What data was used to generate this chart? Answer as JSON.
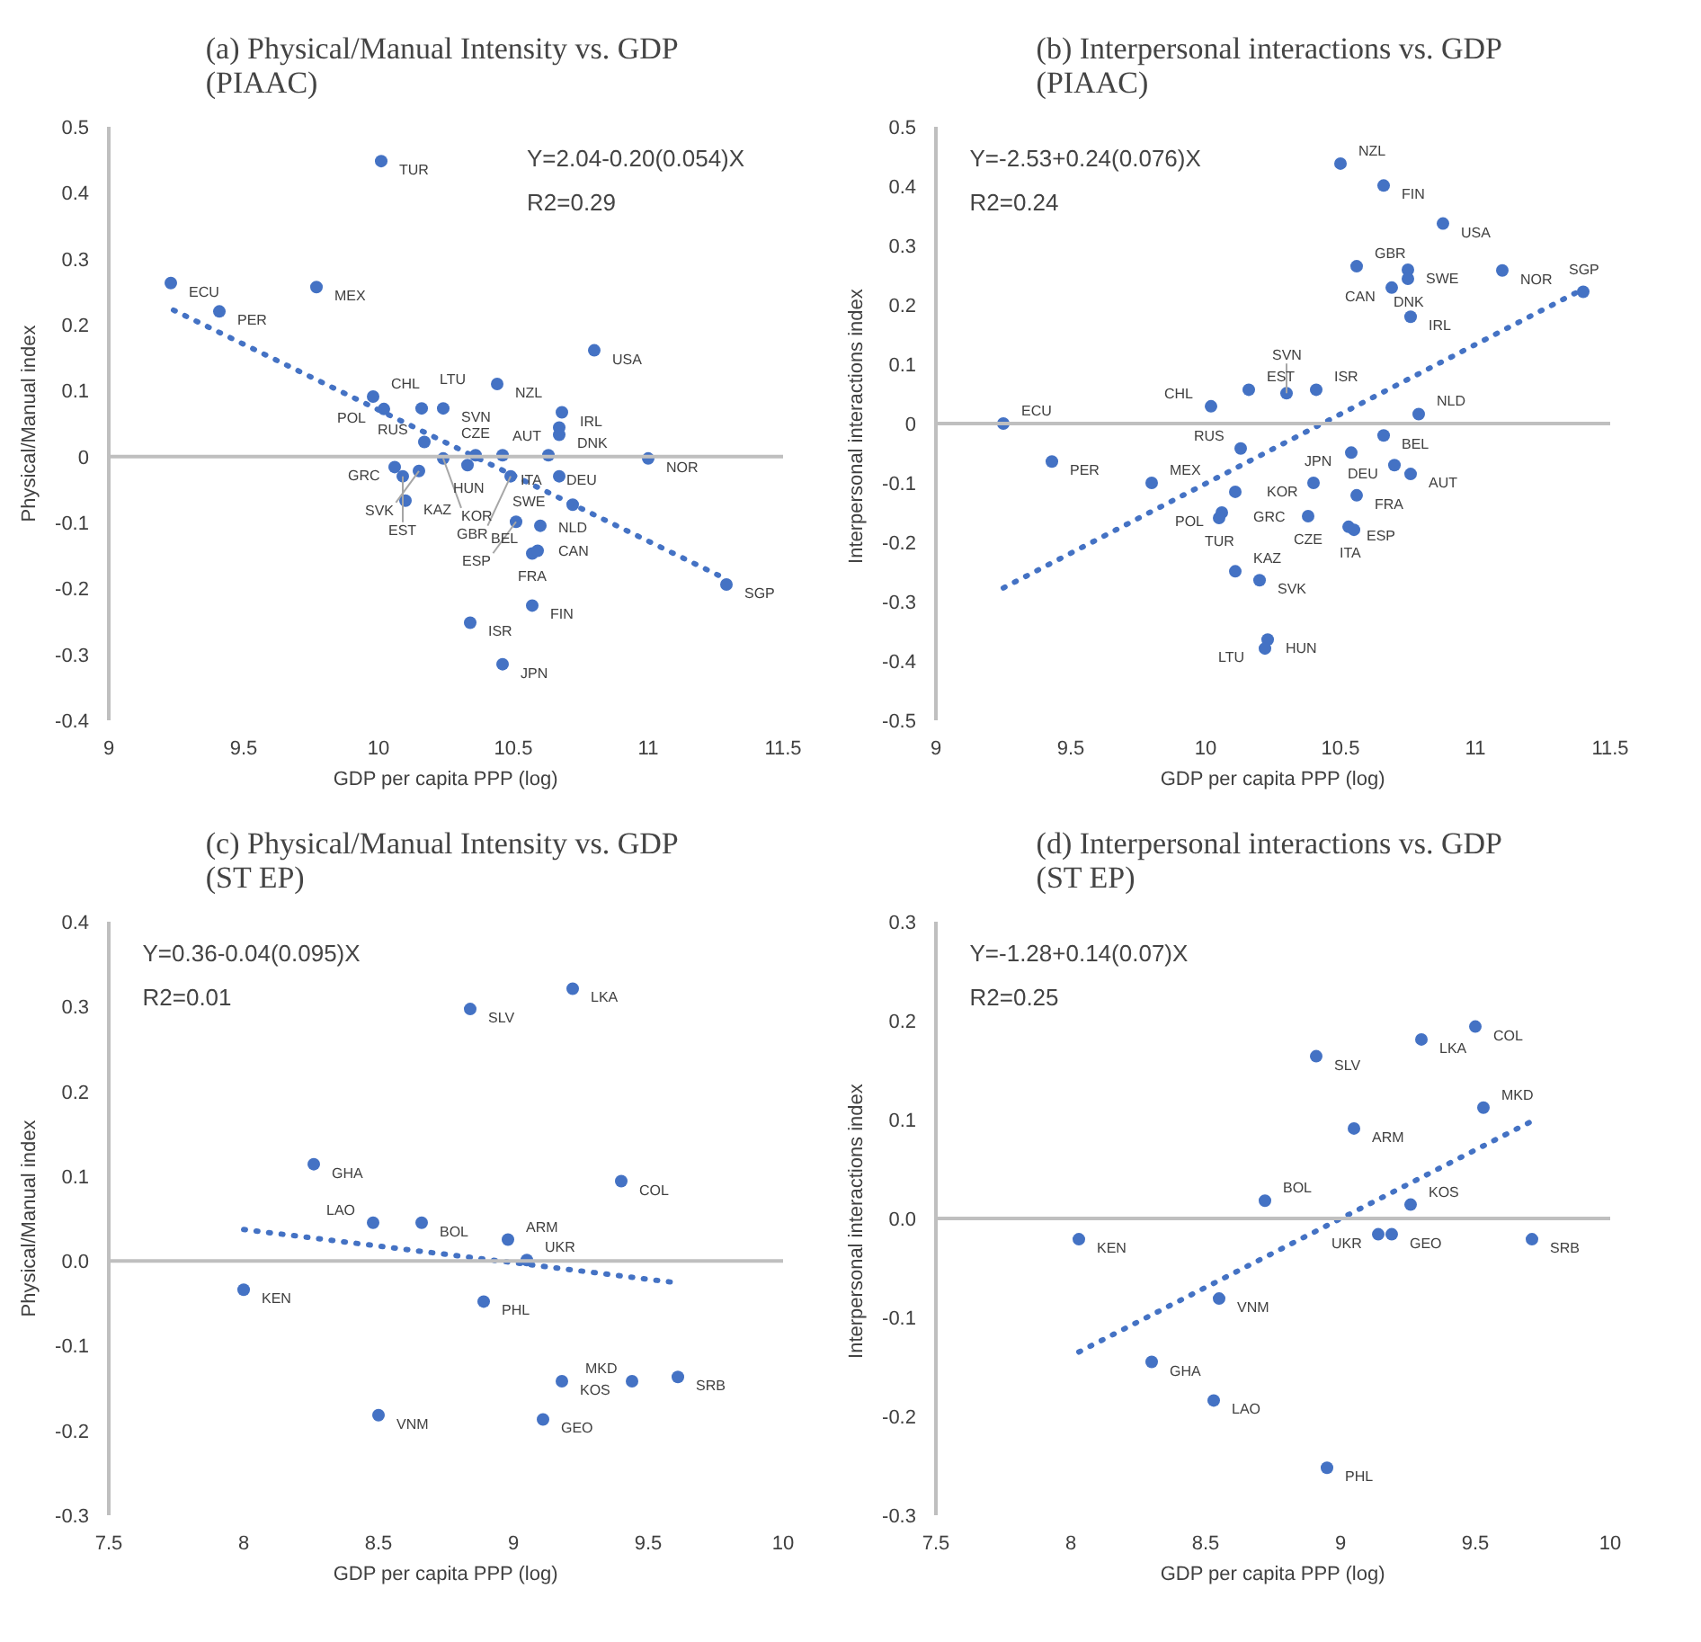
{
  "chart_data": [
    {
      "type": "scatter",
      "title": "(a)  Physical/Manual Intensity vs. GDP\n(PIAAC)",
      "xlabel": "GDP per capita PPP (log)",
      "ylabel": "Physical/Manual index",
      "xlim": [
        9,
        11.5
      ],
      "ylim": [
        -0.4,
        0.5
      ],
      "xticks": [
        9,
        9.5,
        10,
        10.5,
        11,
        11.5
      ],
      "yticks": [
        -0.4,
        -0.3,
        -0.2,
        -0.1,
        0,
        0.1,
        0.2,
        0.3,
        0.4,
        0.5
      ],
      "ref_lines": [
        {
          "axis": "y",
          "value": 0,
          "color": "#bfbfbf"
        }
      ],
      "series": [
        {
          "marker": "circle",
          "color": "#4472c4",
          "x": [
            10.01,
            9.23,
            9.41,
            9.77,
            10.8,
            9.98,
            10.24,
            10.44,
            10.68,
            10.67,
            10.67,
            10.02,
            10.16,
            10.36,
            10.17,
            10.06,
            10.33,
            10.46,
            10.63,
            11.0,
            10.67,
            10.1,
            10.15,
            10.24,
            10.49,
            10.72,
            10.09,
            10.51,
            10.6,
            10.57,
            10.59,
            11.29,
            10.57,
            10.34,
            10.46
          ],
          "values": [
            0.448,
            0.263,
            0.22,
            0.257,
            0.161,
            0.091,
            0.073,
            0.11,
            0.067,
            0.044,
            0.033,
            0.072,
            0.073,
            0.002,
            0.022,
            -0.016,
            -0.013,
            0.002,
            0.002,
            -0.003,
            -0.03,
            -0.067,
            -0.022,
            -0.003,
            -0.03,
            -0.073,
            -0.03,
            -0.099,
            -0.105,
            -0.147,
            -0.143,
            -0.194,
            -0.226,
            -0.252,
            -0.315
          ]
        },
        {
          "type": "line",
          "color": "#4472c4",
          "line_style": "dotted",
          "x": [
            9.24,
            11.29
          ],
          "values": [
            0.222,
            -0.186
          ]
        }
      ],
      "annotations": [
        "Y=2.04-0.20(0.054)X",
        "R2=0.29",
        {
          "text": "TUR",
          "x": 10.01,
          "y": 0.448
        },
        {
          "text": "ECU",
          "x": 9.23,
          "y": 0.263
        },
        {
          "text": "PER",
          "x": 9.41,
          "y": 0.22
        },
        {
          "text": "MEX",
          "x": 9.77,
          "y": 0.257
        },
        {
          "text": "USA",
          "x": 10.8,
          "y": 0.161
        },
        {
          "text": "CHL",
          "x": 9.98,
          "y": 0.091
        },
        {
          "text": "SVN",
          "x": 10.24,
          "y": 0.073
        },
        {
          "text": "NZL",
          "x": 10.44,
          "y": 0.11
        },
        {
          "text": "IRL",
          "x": 10.68,
          "y": 0.067
        },
        {
          "text": "AUT",
          "x": 10.67,
          "y": 0.044
        },
        {
          "text": "DNK",
          "x": 10.67,
          "y": 0.033
        },
        {
          "text": "POL",
          "x": 10.02,
          "y": 0.072
        },
        {
          "text": "LTU",
          "x": 10.16,
          "y": 0.073
        },
        {
          "text": "CZE",
          "x": 10.36,
          "y": 0.002
        },
        {
          "text": "RUS",
          "x": 10.17,
          "y": 0.022
        },
        {
          "text": "GRC",
          "x": 10.06,
          "y": -0.016
        },
        {
          "text": "HUN",
          "x": 10.33,
          "y": -0.013
        },
        {
          "text": "ITA",
          "x": 10.46,
          "y": 0.002
        },
        {
          "text": "DEU",
          "x": 10.63,
          "y": 0.002
        },
        {
          "text": "NOR",
          "x": 11.0,
          "y": -0.003
        },
        {
          "text": "SWE",
          "x": 10.67,
          "y": -0.03
        },
        {
          "text": "KAZ",
          "x": 10.1,
          "y": -0.067
        },
        {
          "text": "SVK",
          "x": 10.15,
          "y": -0.022
        },
        {
          "text": "KOR",
          "x": 10.24,
          "y": -0.003
        },
        {
          "text": "GBR",
          "x": 10.49,
          "y": -0.03
        },
        {
          "text": "NLD",
          "x": 10.72,
          "y": -0.073
        },
        {
          "text": "EST",
          "x": 10.09,
          "y": -0.03
        },
        {
          "text": "ESP",
          "x": 10.51,
          "y": -0.099
        },
        {
          "text": "CAN",
          "x": 10.6,
          "y": -0.105
        },
        {
          "text": "FRA",
          "x": 10.57,
          "y": -0.147
        },
        {
          "text": "BEL",
          "x": 10.59,
          "y": -0.143
        },
        {
          "text": "SGP",
          "x": 11.29,
          "y": -0.194
        },
        {
          "text": "FIN",
          "x": 10.57,
          "y": -0.226
        },
        {
          "text": "ISR",
          "x": 10.34,
          "y": -0.252
        },
        {
          "text": "JPN",
          "x": 10.46,
          "y": -0.315
        }
      ]
    },
    {
      "type": "scatter",
      "title": "(b)  Interpersonal interactions vs. GDP\n(PIAAC)",
      "xlabel": "GDP per capita PPP (log)",
      "ylabel": "Interpersonal  interactions index",
      "xlim": [
        9,
        11.5
      ],
      "ylim": [
        -0.5,
        0.5
      ],
      "xticks": [
        9,
        9.5,
        10,
        10.5,
        11,
        11.5
      ],
      "yticks": [
        -0.5,
        -0.4,
        -0.3,
        -0.2,
        -0.1,
        0,
        0.1,
        0.2,
        0.3,
        0.4,
        0.5
      ],
      "ref_lines": [
        {
          "axis": "y",
          "value": 0,
          "color": "#bfbfbf"
        }
      ],
      "series": [
        {
          "marker": "circle",
          "color": "#4472c4",
          "x": [
            10.5,
            10.66,
            10.88,
            10.56,
            10.75,
            10.75,
            10.69,
            10.76,
            11.1,
            11.4,
            9.25,
            9.43,
            9.8,
            10.02,
            10.16,
            10.41,
            10.3,
            10.79,
            10.66,
            10.54,
            10.7,
            10.56,
            10.76,
            10.4,
            10.13,
            10.11,
            10.06,
            10.38,
            10.53,
            10.55,
            10.05,
            10.11,
            10.2,
            10.23,
            10.22
          ],
          "values": [
            0.438,
            0.401,
            0.337,
            0.265,
            0.259,
            0.244,
            0.229,
            0.18,
            0.258,
            0.222,
            0.0,
            -0.064,
            -0.1,
            0.029,
            0.057,
            0.057,
            0.051,
            0.016,
            -0.02,
            -0.049,
            -0.07,
            -0.121,
            -0.085,
            -0.1,
            -0.042,
            -0.115,
            -0.15,
            -0.156,
            -0.174,
            -0.179,
            -0.159,
            -0.249,
            -0.264,
            -0.364,
            -0.379
          ]
        },
        {
          "type": "line",
          "color": "#4472c4",
          "line_style": "dotted",
          "x": [
            9.25,
            11.38
          ],
          "values": [
            -0.277,
            0.222
          ]
        }
      ],
      "annotations": [
        "Y=-2.53+0.24(0.076)X",
        "R2=0.24",
        {
          "text": "NZL",
          "x": 10.5,
          "y": 0.438
        },
        {
          "text": "FIN",
          "x": 10.66,
          "y": 0.401
        },
        {
          "text": "USA",
          "x": 10.88,
          "y": 0.337
        },
        {
          "text": "GBR",
          "x": 10.56,
          "y": 0.265
        },
        {
          "text": "SWE",
          "x": 10.75,
          "y": 0.259
        },
        {
          "text": "DNK",
          "x": 10.75,
          "y": 0.244
        },
        {
          "text": "CAN",
          "x": 10.69,
          "y": 0.229
        },
        {
          "text": "IRL",
          "x": 10.76,
          "y": 0.18
        },
        {
          "text": "NOR",
          "x": 11.1,
          "y": 0.258
        },
        {
          "text": "SGP",
          "x": 11.4,
          "y": 0.222
        },
        {
          "text": "ECU",
          "x": 9.25,
          "y": 0.0
        },
        {
          "text": "PER",
          "x": 9.43,
          "y": -0.064
        },
        {
          "text": "MEX",
          "x": 9.8,
          "y": -0.1
        },
        {
          "text": "CHL",
          "x": 10.02,
          "y": 0.029
        },
        {
          "text": "EST",
          "x": 10.16,
          "y": 0.057
        },
        {
          "text": "ISR",
          "x": 10.41,
          "y": 0.057
        },
        {
          "text": "SVN",
          "x": 10.3,
          "y": 0.051
        },
        {
          "text": "NLD",
          "x": 10.79,
          "y": 0.016
        },
        {
          "text": "BEL",
          "x": 10.66,
          "y": -0.02
        },
        {
          "text": "JPN",
          "x": 10.54,
          "y": -0.049
        },
        {
          "text": "DEU",
          "x": 10.7,
          "y": -0.07
        },
        {
          "text": "FRA",
          "x": 10.56,
          "y": -0.121
        },
        {
          "text": "AUT",
          "x": 10.76,
          "y": -0.085
        },
        {
          "text": "KOR",
          "x": 10.4,
          "y": -0.1
        },
        {
          "text": "RUS",
          "x": 10.13,
          "y": -0.042
        },
        {
          "text": "GRC",
          "x": 10.11,
          "y": -0.115
        },
        {
          "text": "POL",
          "x": 10.06,
          "y": -0.15
        },
        {
          "text": "CZE",
          "x": 10.38,
          "y": -0.156
        },
        {
          "text": "ESP",
          "x": 10.53,
          "y": -0.174
        },
        {
          "text": "ITA",
          "x": 10.55,
          "y": -0.179
        },
        {
          "text": "TUR",
          "x": 10.05,
          "y": -0.159
        },
        {
          "text": "KAZ",
          "x": 10.11,
          "y": -0.249
        },
        {
          "text": "SVK",
          "x": 10.2,
          "y": -0.264
        },
        {
          "text": "HUN",
          "x": 10.23,
          "y": -0.364
        },
        {
          "text": "LTU",
          "x": 10.22,
          "y": -0.379
        }
      ]
    },
    {
      "type": "scatter",
      "title": "(c)  Physical/Manual Intensity vs. GDP\n(ST EP)",
      "xlabel": "GDP per capita PPP (log)",
      "ylabel": "Physical/Manual index",
      "xlim": [
        7.5,
        10
      ],
      "ylim": [
        -0.3,
        0.4
      ],
      "xticks": [
        7.5,
        8,
        8.5,
        9,
        9.5,
        10
      ],
      "yticks": [
        -0.3,
        -0.2,
        -0.1,
        {
          "value": 0,
          "label": "0.0"
        },
        0.1,
        0.2,
        0.3,
        0.4
      ],
      "ref_lines": [
        {
          "axis": "y",
          "value": 0,
          "color": "#bfbfbf"
        }
      ],
      "series": [
        {
          "marker": "circle",
          "color": "#4472c4",
          "x": [
            8.0,
            8.26,
            8.48,
            8.66,
            8.84,
            9.22,
            9.4,
            8.98,
            9.05,
            8.89,
            8.5,
            9.18,
            9.44,
            9.61,
            9.11
          ],
          "values": [
            -0.034,
            0.114,
            0.045,
            0.045,
            0.297,
            0.321,
            0.094,
            0.025,
            0.001,
            -0.048,
            -0.182,
            -0.142,
            -0.142,
            -0.137,
            -0.187
          ]
        },
        {
          "type": "line",
          "color": "#4472c4",
          "line_style": "dotted",
          "x": [
            8.0,
            9.61
          ],
          "values": [
            0.037,
            -0.026
          ]
        }
      ],
      "annotations": [
        "Y=0.36-0.04(0.095)X",
        "R2=0.01",
        {
          "text": "KEN",
          "x": 8.0,
          "y": -0.034
        },
        {
          "text": "GHA",
          "x": 8.26,
          "y": 0.114
        },
        {
          "text": "LAO",
          "x": 8.48,
          "y": 0.045
        },
        {
          "text": "BOL",
          "x": 8.66,
          "y": 0.045
        },
        {
          "text": "SLV",
          "x": 8.84,
          "y": 0.297
        },
        {
          "text": "LKA",
          "x": 9.22,
          "y": 0.321
        },
        {
          "text": "COL",
          "x": 9.4,
          "y": 0.094
        },
        {
          "text": "ARM",
          "x": 8.98,
          "y": 0.025
        },
        {
          "text": "UKR",
          "x": 9.05,
          "y": 0.001
        },
        {
          "text": "PHL",
          "x": 8.89,
          "y": -0.048
        },
        {
          "text": "VNM",
          "x": 8.5,
          "y": -0.182
        },
        {
          "text": "KOS",
          "x": 9.18,
          "y": -0.142
        },
        {
          "text": "MKD",
          "x": 9.44,
          "y": -0.142
        },
        {
          "text": "SRB",
          "x": 9.61,
          "y": -0.137
        },
        {
          "text": "GEO",
          "x": 9.11,
          "y": -0.187
        }
      ]
    },
    {
      "type": "scatter",
      "title": "(d)  Interpersonal interactions vs. GDP\n(ST EP)",
      "xlabel": "GDP per capita PPP (log)",
      "ylabel": "Interpersonal  interactions index",
      "xlim": [
        7.5,
        10
      ],
      "ylim": [
        -0.3,
        0.3
      ],
      "xticks": [
        7.5,
        8,
        8.5,
        9,
        9.5,
        10
      ],
      "yticks": [
        -0.3,
        -0.2,
        -0.1,
        {
          "value": 0,
          "label": "0.0"
        },
        0.1,
        0.2,
        0.3
      ],
      "ref_lines": [
        {
          "axis": "y",
          "value": 0,
          "color": "#bfbfbf"
        }
      ],
      "series": [
        {
          "marker": "circle",
          "color": "#4472c4",
          "x": [
            8.03,
            8.3,
            8.53,
            8.95,
            8.55,
            8.72,
            8.91,
            9.3,
            9.5,
            9.05,
            9.53,
            9.26,
            9.14,
            9.19,
            9.71
          ],
          "values": [
            -0.021,
            -0.145,
            -0.184,
            -0.252,
            -0.081,
            0.018,
            0.164,
            0.181,
            0.194,
            0.091,
            0.112,
            0.014,
            -0.016,
            -0.016,
            -0.021
          ]
        },
        {
          "type": "line",
          "color": "#4472c4",
          "line_style": "dotted",
          "x": [
            8.03,
            9.7
          ],
          "values": [
            -0.135,
            0.097
          ]
        }
      ],
      "annotations": [
        "Y=-1.28+0.14(0.07)X",
        "R2=0.25",
        {
          "text": "KEN",
          "x": 8.03,
          "y": -0.021
        },
        {
          "text": "GHA",
          "x": 8.3,
          "y": -0.145
        },
        {
          "text": "LAO",
          "x": 8.53,
          "y": -0.184
        },
        {
          "text": "PHL",
          "x": 8.95,
          "y": -0.252
        },
        {
          "text": "VNM",
          "x": 8.55,
          "y": -0.081
        },
        {
          "text": "BOL",
          "x": 8.72,
          "y": 0.018
        },
        {
          "text": "SLV",
          "x": 8.91,
          "y": 0.164
        },
        {
          "text": "LKA",
          "x": 9.3,
          "y": 0.181
        },
        {
          "text": "COL",
          "x": 9.5,
          "y": 0.194
        },
        {
          "text": "ARM",
          "x": 9.05,
          "y": 0.091
        },
        {
          "text": "MKD",
          "x": 9.53,
          "y": 0.112
        },
        {
          "text": "KOS",
          "x": 9.26,
          "y": 0.014
        },
        {
          "text": "UKR",
          "x": 9.14,
          "y": -0.016
        },
        {
          "text": "GEO",
          "x": 9.19,
          "y": -0.016
        },
        {
          "text": "SRB",
          "x": 9.71,
          "y": -0.021
        }
      ]
    }
  ]
}
